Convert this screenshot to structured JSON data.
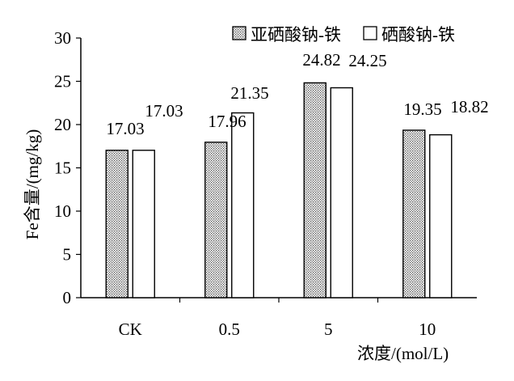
{
  "chart_data": {
    "type": "bar",
    "categories": [
      "CK",
      "0.5",
      "5",
      "10"
    ],
    "series": [
      {
        "name": "亚硒酸钠-铁",
        "values": [
          17.03,
          17.96,
          24.82,
          19.35
        ],
        "pattern": "dotted"
      },
      {
        "name": "硒酸钠-铁",
        "values": [
          17.03,
          21.35,
          24.25,
          18.82
        ],
        "pattern": "white"
      }
    ],
    "data_labels": [
      [
        "17.03",
        "17.96",
        "24.82",
        "19.35"
      ],
      [
        "17.03",
        "21.35",
        "24.25",
        "18.82"
      ]
    ],
    "xlabel": "浓度/(mol/L)",
    "ylabel": "Fe含量/(mg/kg)",
    "ylim": [
      0,
      30
    ],
    "yticks": [
      0,
      5,
      10,
      15,
      20,
      25,
      30
    ],
    "grid": false,
    "legend_position": "top-right",
    "colors": {
      "axis": "#000000",
      "bar_stroke": "#000000",
      "white_fill": "#ffffff",
      "dot_color": "#555555"
    }
  }
}
